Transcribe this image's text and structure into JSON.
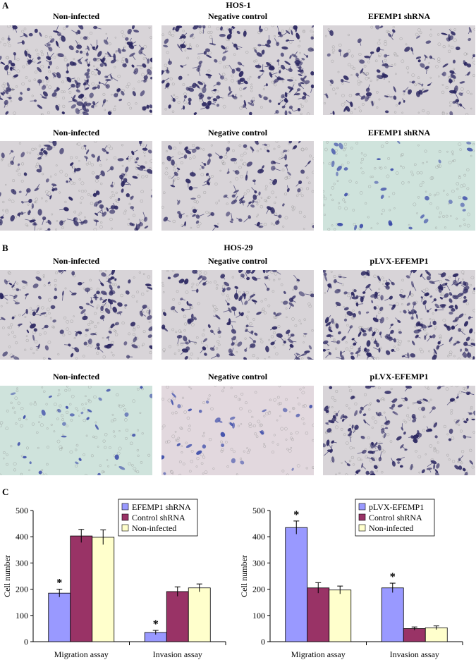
{
  "figure": {
    "panel_a_letter": "A",
    "panel_b_letter": "B",
    "panel_c_letter": "C",
    "panel_a_title": "HOS-1",
    "panel_b_title": "HOS-29",
    "panel_a_row1_captions": [
      "Non-infected",
      "Negative control",
      "EFEMP1 shRNA"
    ],
    "panel_a_row2_captions": [
      "Non-infected",
      "Negative control",
      "EFEMP1 shRNA"
    ],
    "panel_b_row1_captions": [
      "Non-infected",
      "Negative control",
      "pLVX-EFEMP1"
    ],
    "panel_b_row2_captions": [
      "Non-infected",
      "Negative control",
      "pLVX-EFEMP1"
    ],
    "micrograph_colors": {
      "background_gray": "#d8d4d8",
      "background_teal": "#cfe3dc",
      "background_pink": "#e2d8de",
      "cell_dark": "#2a2660",
      "cell_blue": "#3a4aa8"
    }
  },
  "chart_data": [
    {
      "type": "bar",
      "categories": [
        "Migration assay",
        "Invasion assay"
      ],
      "series": [
        {
          "name": "EFEMP1 shRNA",
          "values": [
            185,
            35
          ],
          "errors": [
            15,
            8
          ],
          "color": "#9999ff"
        },
        {
          "name": "Control shRNA",
          "values": [
            403,
            191
          ],
          "errors": [
            25,
            18
          ],
          "color": "#993366"
        },
        {
          "name": "Non-infected",
          "values": [
            398,
            205
          ],
          "errors": [
            28,
            15
          ],
          "color": "#ffffcc"
        }
      ],
      "significance": [
        [
          "*",
          ""
        ],
        [
          "*",
          ""
        ]
      ],
      "ylabel": "Cell number",
      "ylim": [
        0,
        500
      ],
      "yticks": [
        0,
        100,
        200,
        300,
        400,
        500
      ],
      "legend_position": "top-right"
    },
    {
      "type": "bar",
      "categories": [
        "Migration assay",
        "Invasion assay"
      ],
      "series": [
        {
          "name": "pLVX-EFEMP1",
          "values": [
            435,
            205
          ],
          "errors": [
            25,
            18
          ],
          "color": "#9999ff"
        },
        {
          "name": "Control shRNA",
          "values": [
            205,
            50
          ],
          "errors": [
            20,
            6
          ],
          "color": "#993366"
        },
        {
          "name": "Non-infected",
          "values": [
            197,
            53
          ],
          "errors": [
            15,
            7
          ],
          "color": "#ffffcc"
        }
      ],
      "significance": [
        [
          "*",
          ""
        ],
        [
          "*",
          ""
        ]
      ],
      "ylabel": "Cell number",
      "ylim": [
        0,
        500
      ],
      "yticks": [
        0,
        100,
        200,
        300,
        400,
        500
      ],
      "legend_position": "top-right"
    }
  ]
}
